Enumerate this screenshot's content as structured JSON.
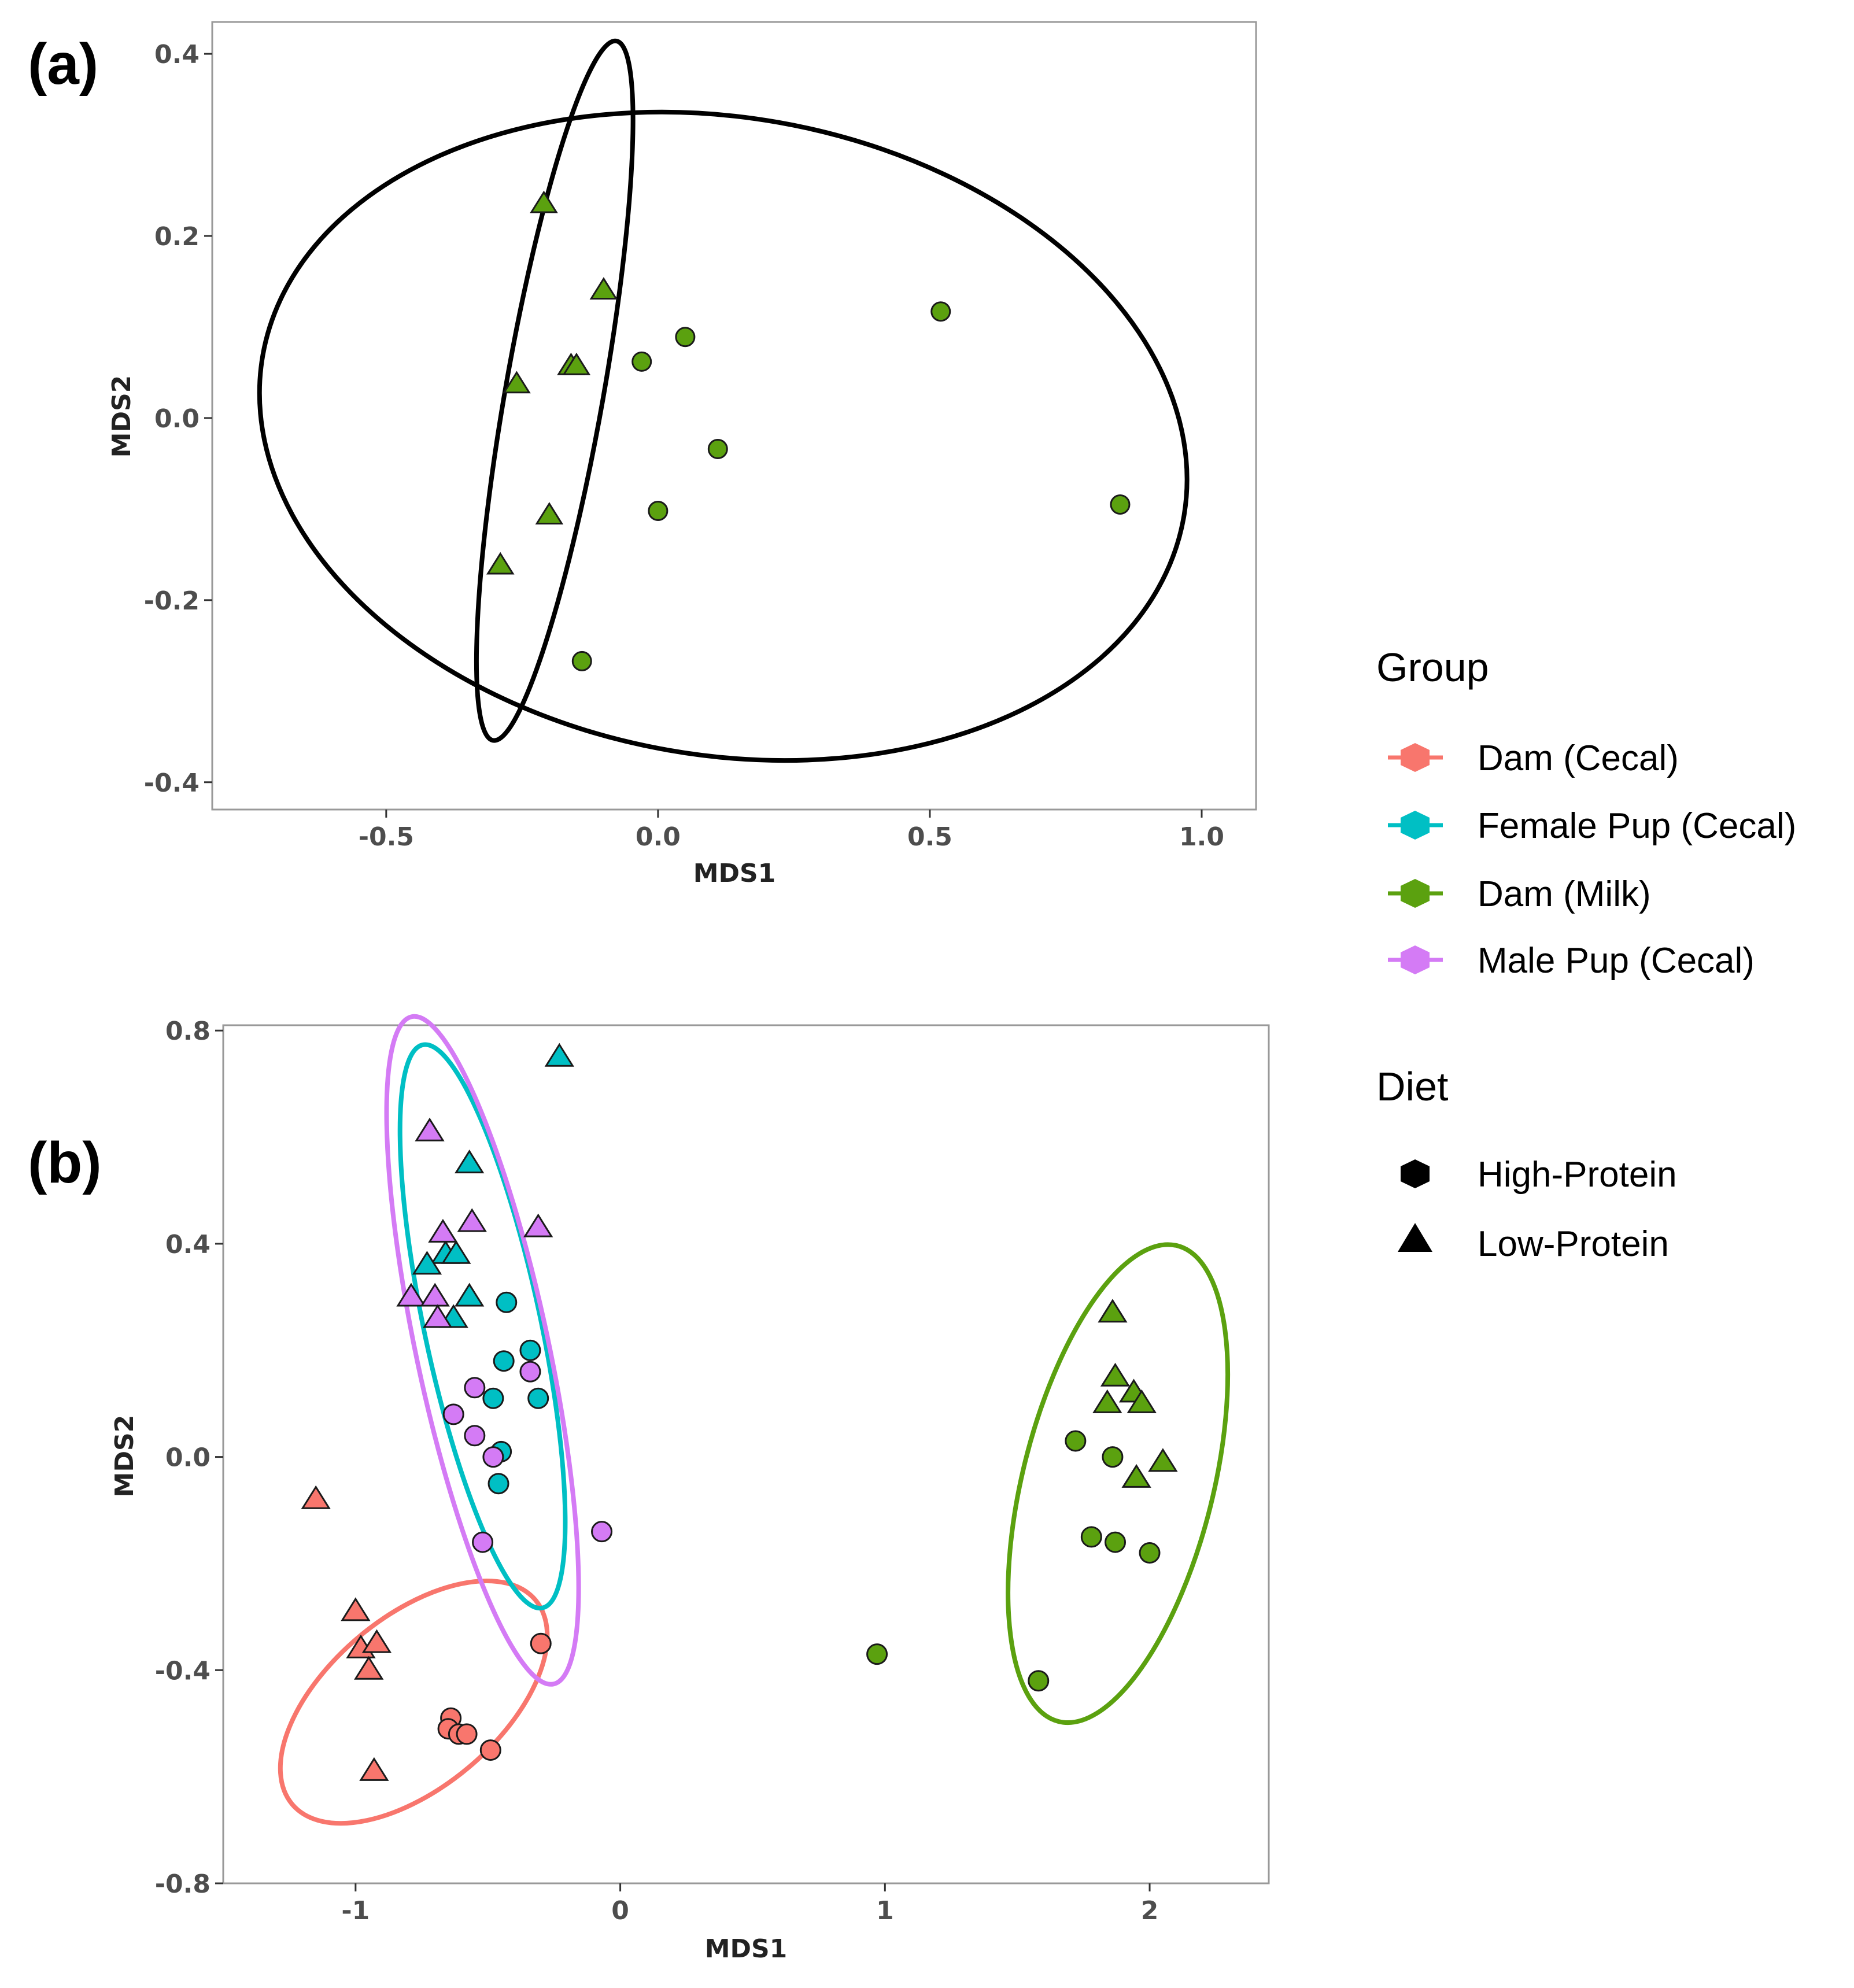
{
  "panel_labels": {
    "a": "(a)",
    "b": "(b)"
  },
  "colors": {
    "dam_cecal": "#F8766D",
    "female_pup_cecal": "#00BFC4",
    "dam_milk": "#5BA10F",
    "male_pup_cecal": "#D47BF5",
    "ellipse_a": "#000000",
    "axis": "#999999"
  },
  "legend": {
    "group_title": "Group",
    "groups": [
      {
        "key": "dam_cecal",
        "label": "Dam (Cecal)"
      },
      {
        "key": "female_pup_cecal",
        "label": "Female Pup (Cecal)"
      },
      {
        "key": "dam_milk",
        "label": "Dam (Milk)"
      },
      {
        "key": "male_pup_cecal",
        "label": "Male  Pup (Cecal)"
      }
    ],
    "diet_title": "Diet",
    "diets": [
      {
        "shape": "circle",
        "label": "High-Protein"
      },
      {
        "shape": "triangle",
        "label": "Low-Protein"
      }
    ]
  },
  "chart_data": [
    {
      "panel": "a",
      "type": "scatter",
      "xlabel": "MDS1",
      "ylabel": "MDS2",
      "xlim": [
        -0.82,
        1.1
      ],
      "ylim": [
        -0.43,
        0.435
      ],
      "xticks": [
        -0.5,
        0.0,
        0.5,
        1.0
      ],
      "xtick_labels": [
        "-0.5",
        "0.0",
        "0.5",
        "1.0"
      ],
      "yticks": [
        -0.4,
        -0.2,
        0.0,
        0.2,
        0.4
      ],
      "ytick_labels": [
        "-0.4",
        "-0.2",
        "0.0",
        "0.2",
        "0.4"
      ],
      "grid": false,
      "points": [
        {
          "x": -0.21,
          "y": 0.235,
          "group": "dam_milk",
          "diet": "Low-Protein"
        },
        {
          "x": -0.1,
          "y": 0.14,
          "group": "dam_milk",
          "diet": "Low-Protein"
        },
        {
          "x": -0.16,
          "y": 0.057,
          "group": "dam_milk",
          "diet": "Low-Protein"
        },
        {
          "x": -0.15,
          "y": 0.057,
          "group": "dam_milk",
          "diet": "Low-Protein"
        },
        {
          "x": -0.26,
          "y": 0.037,
          "group": "dam_milk",
          "diet": "Low-Protein"
        },
        {
          "x": -0.2,
          "y": -0.107,
          "group": "dam_milk",
          "diet": "Low-Protein"
        },
        {
          "x": -0.29,
          "y": -0.162,
          "group": "dam_milk",
          "diet": "Low-Protein"
        },
        {
          "x": 0.52,
          "y": 0.117,
          "group": "dam_milk",
          "diet": "High-Protein"
        },
        {
          "x": 0.05,
          "y": 0.089,
          "group": "dam_milk",
          "diet": "High-Protein"
        },
        {
          "x": -0.03,
          "y": 0.062,
          "group": "dam_milk",
          "diet": "High-Protein"
        },
        {
          "x": 0.11,
          "y": -0.034,
          "group": "dam_milk",
          "diet": "High-Protein"
        },
        {
          "x": 0.85,
          "y": -0.095,
          "group": "dam_milk",
          "diet": "High-Protein"
        },
        {
          "x": -0.0,
          "y": -0.102,
          "group": "dam_milk",
          "diet": "High-Protein"
        },
        {
          "x": -0.14,
          "y": -0.267,
          "group": "dam_milk",
          "diet": "High-Protein"
        }
      ],
      "ellipses": [
        {
          "diet": "High-Protein",
          "cx": 0.12,
          "cy": -0.02,
          "rx": 0.86,
          "ry": 0.35,
          "angle_deg": 10,
          "color": "ellipse_a"
        },
        {
          "diet": "Low-Protein",
          "cx": -0.19,
          "cy": 0.03,
          "rx": 0.09,
          "ry": 0.39,
          "angle_deg": 10,
          "color": "ellipse_a"
        }
      ]
    },
    {
      "panel": "b",
      "type": "scatter",
      "xlabel": "MDS1",
      "ylabel": "MDS2",
      "xlim": [
        -1.5,
        2.45
      ],
      "ylim": [
        -0.8,
        0.81
      ],
      "xticks": [
        -1,
        0,
        1,
        2
      ],
      "xtick_labels": [
        "-1",
        "0",
        "1",
        "2"
      ],
      "yticks": [
        -0.8,
        -0.4,
        0.0,
        0.4,
        0.8
      ],
      "ytick_labels": [
        "-0.8",
        "-0.4",
        "0.0",
        "0.4",
        "0.8"
      ],
      "grid": false,
      "points": [
        {
          "x": -1.15,
          "y": -0.08,
          "group": "dam_cecal",
          "diet": "Low-Protein"
        },
        {
          "x": -1.0,
          "y": -0.29,
          "group": "dam_cecal",
          "diet": "Low-Protein"
        },
        {
          "x": -0.98,
          "y": -0.36,
          "group": "dam_cecal",
          "diet": "Low-Protein"
        },
        {
          "x": -0.92,
          "y": -0.35,
          "group": "dam_cecal",
          "diet": "Low-Protein"
        },
        {
          "x": -0.95,
          "y": -0.4,
          "group": "dam_cecal",
          "diet": "Low-Protein"
        },
        {
          "x": -0.93,
          "y": -0.59,
          "group": "dam_cecal",
          "diet": "Low-Protein"
        },
        {
          "x": -0.3,
          "y": -0.35,
          "group": "dam_cecal",
          "diet": "High-Protein"
        },
        {
          "x": -0.64,
          "y": -0.49,
          "group": "dam_cecal",
          "diet": "High-Protein"
        },
        {
          "x": -0.65,
          "y": -0.51,
          "group": "dam_cecal",
          "diet": "High-Protein"
        },
        {
          "x": -0.61,
          "y": -0.52,
          "group": "dam_cecal",
          "diet": "High-Protein"
        },
        {
          "x": -0.58,
          "y": -0.52,
          "group": "dam_cecal",
          "diet": "High-Protein"
        },
        {
          "x": -0.49,
          "y": -0.55,
          "group": "dam_cecal",
          "diet": "High-Protein"
        },
        {
          "x": -0.23,
          "y": 0.75,
          "group": "female_pup_cecal",
          "diet": "Low-Protein"
        },
        {
          "x": -0.57,
          "y": 0.55,
          "group": "female_pup_cecal",
          "diet": "Low-Protein"
        },
        {
          "x": -0.66,
          "y": 0.38,
          "group": "female_pup_cecal",
          "diet": "Low-Protein"
        },
        {
          "x": -0.62,
          "y": 0.38,
          "group": "female_pup_cecal",
          "diet": "Low-Protein"
        },
        {
          "x": -0.73,
          "y": 0.36,
          "group": "female_pup_cecal",
          "diet": "Low-Protein"
        },
        {
          "x": -0.57,
          "y": 0.3,
          "group": "female_pup_cecal",
          "diet": "Low-Protein"
        },
        {
          "x": -0.63,
          "y": 0.26,
          "group": "female_pup_cecal",
          "diet": "Low-Protein"
        },
        {
          "x": -0.43,
          "y": 0.29,
          "group": "female_pup_cecal",
          "diet": "High-Protein"
        },
        {
          "x": -0.34,
          "y": 0.2,
          "group": "female_pup_cecal",
          "diet": "High-Protein"
        },
        {
          "x": -0.44,
          "y": 0.18,
          "group": "female_pup_cecal",
          "diet": "High-Protein"
        },
        {
          "x": -0.48,
          "y": 0.11,
          "group": "female_pup_cecal",
          "diet": "High-Protein"
        },
        {
          "x": -0.31,
          "y": 0.11,
          "group": "female_pup_cecal",
          "diet": "High-Protein"
        },
        {
          "x": -0.45,
          "y": 0.01,
          "group": "female_pup_cecal",
          "diet": "High-Protein"
        },
        {
          "x": -0.46,
          "y": -0.05,
          "group": "female_pup_cecal",
          "diet": "High-Protein"
        },
        {
          "x": -0.72,
          "y": 0.61,
          "group": "male_pup_cecal",
          "diet": "Low-Protein"
        },
        {
          "x": -0.56,
          "y": 0.44,
          "group": "male_pup_cecal",
          "diet": "Low-Protein"
        },
        {
          "x": -0.67,
          "y": 0.42,
          "group": "male_pup_cecal",
          "diet": "Low-Protein"
        },
        {
          "x": -0.31,
          "y": 0.43,
          "group": "male_pup_cecal",
          "diet": "Low-Protein"
        },
        {
          "x": -0.79,
          "y": 0.3,
          "group": "male_pup_cecal",
          "diet": "Low-Protein"
        },
        {
          "x": -0.7,
          "y": 0.3,
          "group": "male_pup_cecal",
          "diet": "Low-Protein"
        },
        {
          "x": -0.69,
          "y": 0.26,
          "group": "male_pup_cecal",
          "diet": "Low-Protein"
        },
        {
          "x": -0.34,
          "y": 0.16,
          "group": "male_pup_cecal",
          "diet": "High-Protein"
        },
        {
          "x": -0.55,
          "y": 0.13,
          "group": "male_pup_cecal",
          "diet": "High-Protein"
        },
        {
          "x": -0.63,
          "y": 0.08,
          "group": "male_pup_cecal",
          "diet": "High-Protein"
        },
        {
          "x": -0.55,
          "y": 0.04,
          "group": "male_pup_cecal",
          "diet": "High-Protein"
        },
        {
          "x": -0.48,
          "y": 0.0,
          "group": "male_pup_cecal",
          "diet": "High-Protein"
        },
        {
          "x": -0.52,
          "y": -0.16,
          "group": "male_pup_cecal",
          "diet": "High-Protein"
        },
        {
          "x": -0.07,
          "y": -0.14,
          "group": "male_pup_cecal",
          "diet": "High-Protein"
        },
        {
          "x": 1.86,
          "y": 0.27,
          "group": "dam_milk",
          "diet": "Low-Protein"
        },
        {
          "x": 1.87,
          "y": 0.15,
          "group": "dam_milk",
          "diet": "Low-Protein"
        },
        {
          "x": 1.94,
          "y": 0.12,
          "group": "dam_milk",
          "diet": "Low-Protein"
        },
        {
          "x": 1.84,
          "y": 0.1,
          "group": "dam_milk",
          "diet": "Low-Protein"
        },
        {
          "x": 1.97,
          "y": 0.1,
          "group": "dam_milk",
          "diet": "Low-Protein"
        },
        {
          "x": 2.05,
          "y": -0.01,
          "group": "dam_milk",
          "diet": "Low-Protein"
        },
        {
          "x": 1.95,
          "y": -0.04,
          "group": "dam_milk",
          "diet": "Low-Protein"
        },
        {
          "x": 1.72,
          "y": 0.03,
          "group": "dam_milk",
          "diet": "High-Protein"
        },
        {
          "x": 1.86,
          "y": 0.0,
          "group": "dam_milk",
          "diet": "High-Protein"
        },
        {
          "x": 1.78,
          "y": -0.15,
          "group": "dam_milk",
          "diet": "High-Protein"
        },
        {
          "x": 1.87,
          "y": -0.16,
          "group": "dam_milk",
          "diet": "High-Protein"
        },
        {
          "x": 2.0,
          "y": -0.18,
          "group": "dam_milk",
          "diet": "High-Protein"
        },
        {
          "x": 0.97,
          "y": -0.37,
          "group": "dam_milk",
          "diet": "High-Protein"
        },
        {
          "x": 1.58,
          "y": -0.42,
          "group": "dam_milk",
          "diet": "High-Protein"
        }
      ],
      "ellipses": [
        {
          "group": "dam_cecal",
          "cx": -0.78,
          "cy": -0.46,
          "rx": 0.6,
          "ry": 0.16,
          "angle_deg": -40,
          "color": "dam_cecal"
        },
        {
          "group": "female_pup_cecal",
          "cx": -0.52,
          "cy": 0.245,
          "rx": 0.22,
          "ry": 0.54,
          "angle_deg": -12,
          "color": "female_pup_cecal"
        },
        {
          "group": "male_pup_cecal",
          "cx": -0.52,
          "cy": 0.2,
          "rx": 0.25,
          "ry": 0.64,
          "angle_deg": -12,
          "color": "male_pup_cecal"
        },
        {
          "group": "dam_milk",
          "cx": 1.88,
          "cy": -0.05,
          "rx": 0.36,
          "ry": 0.46,
          "angle_deg": 14,
          "color": "dam_milk"
        }
      ]
    }
  ]
}
